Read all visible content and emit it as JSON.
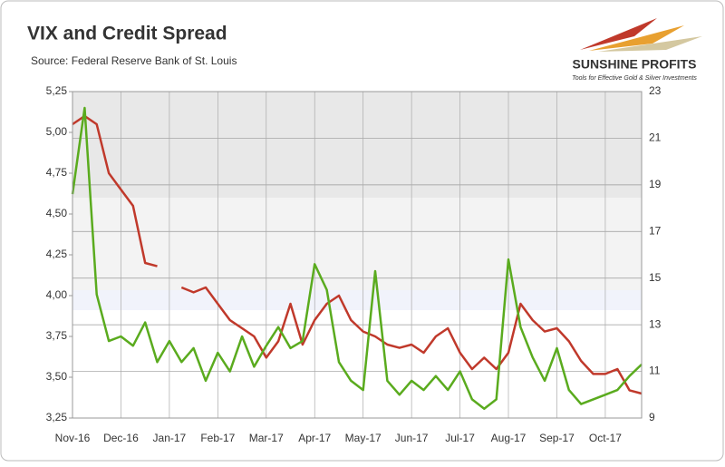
{
  "chart_data": {
    "type": "line",
    "title": "VIX and Credit Spread",
    "subtitle": "Source: Federal Reserve Bank of St. Louis",
    "brand": "SUNSHINE PROFITS",
    "tagline": "Tools for Effective Gold & Silver Investments",
    "categories": [
      "Nov-16",
      null,
      null,
      null,
      "Dec-16",
      null,
      null,
      null,
      "Jan-17",
      null,
      null,
      null,
      "Feb-17",
      null,
      null,
      null,
      "Mar-17",
      null,
      null,
      null,
      "Apr-17",
      null,
      null,
      null,
      "May-17",
      null,
      null,
      null,
      "Jun-17",
      null,
      null,
      null,
      "Jul-17",
      null,
      null,
      null,
      "Aug-17",
      null,
      null,
      null,
      "Sep-17",
      null,
      null,
      null,
      "Oct-17",
      null,
      null,
      null
    ],
    "series": [
      {
        "color": "#c0392b",
        "axis": "y",
        "values": [
          5.05,
          5.1,
          5.05,
          4.75,
          4.65,
          4.55,
          4.2,
          4.18,
          null,
          4.05,
          4.02,
          4.05,
          3.95,
          3.85,
          3.8,
          3.75,
          3.62,
          3.72,
          3.95,
          3.7,
          3.85,
          3.95,
          4.0,
          3.85,
          3.78,
          3.75,
          3.7,
          3.68,
          3.7,
          3.65,
          3.75,
          3.8,
          3.65,
          3.55,
          3.62,
          3.55,
          3.65,
          3.95,
          3.85,
          3.78,
          3.8,
          3.72,
          3.6,
          3.52,
          3.52,
          3.55,
          3.42,
          3.4
        ]
      },
      {
        "color": "#5aab1e",
        "axis": "y2",
        "values": [
          18.6,
          22.3,
          14.3,
          12.3,
          12.5,
          12.1,
          13.1,
          11.4,
          12.3,
          11.4,
          12.0,
          10.6,
          11.8,
          11.0,
          12.5,
          11.2,
          12.1,
          12.9,
          12.0,
          12.3,
          15.6,
          14.5,
          11.4,
          10.6,
          10.2,
          15.3,
          10.6,
          10.0,
          10.6,
          10.2,
          10.8,
          10.2,
          11.0,
          9.8,
          9.4,
          9.8,
          15.8,
          12.9,
          11.6,
          10.6,
          12.0,
          10.2,
          9.6,
          9.8,
          10.0,
          10.2,
          10.8,
          11.3
        ]
      }
    ],
    "ylim": [
      3.25,
      5.25
    ],
    "yticks": [
      {
        "value": 3.25,
        "label": "3,25"
      },
      {
        "value": 3.5,
        "label": "3,50"
      },
      {
        "value": 3.75,
        "label": "3,75"
      },
      {
        "value": 4.0,
        "label": "4,00"
      },
      {
        "value": 4.25,
        "label": "4,25"
      },
      {
        "value": 4.5,
        "label": "4,50"
      },
      {
        "value": 4.75,
        "label": "4,75"
      },
      {
        "value": 5.0,
        "label": "5,00"
      },
      {
        "value": 5.25,
        "label": "5,25"
      }
    ],
    "y2lim": [
      9,
      23
    ],
    "y2ticks": [
      9,
      11,
      13,
      15,
      17,
      19,
      21,
      23
    ],
    "grid": true
  }
}
